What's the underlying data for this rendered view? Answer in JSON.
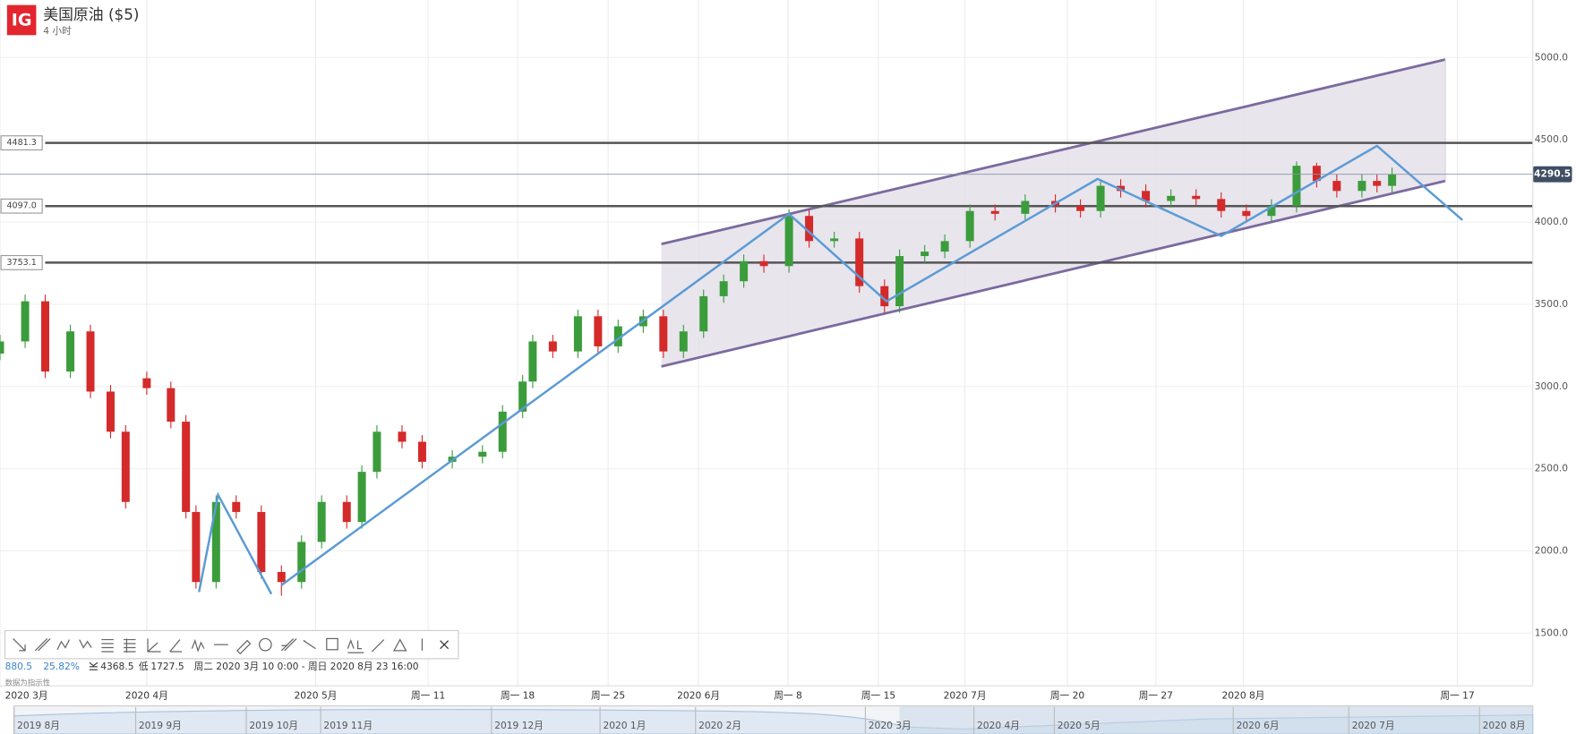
{
  "chart_data": {
    "type": "candlestick",
    "title": "美国原油 ($5)",
    "subtitle": "4 小时",
    "logo": "IG",
    "x": [
      0,
      25,
      45,
      70,
      90,
      110,
      125,
      146,
      170,
      185,
      195,
      215,
      235,
      260,
      280,
      300,
      320,
      345,
      360,
      375,
      400,
      420,
      450,
      480,
      500,
      520,
      530,
      550,
      575,
      595,
      615,
      640,
      660,
      680,
      700,
      720,
      740,
      760,
      785,
      805,
      830,
      855,
      880,
      895,
      920,
      940,
      965,
      990,
      1020,
      1050,
      1075,
      1095,
      1115,
      1140,
      1165,
      1190,
      1215,
      1240,
      1265,
      1290,
      1310,
      1330,
      1355,
      1370,
      1385
    ],
    "open": [
      3200,
      3274,
      3518,
      3091,
      3335,
      2969,
      2725,
      3050,
      2990,
      2786,
      2237,
      1811,
      2298,
      2237,
      1872,
      1811,
      2055,
      2298,
      2176,
      2481,
      2725,
      2664,
      2542,
      2573,
      2603,
      2847,
      3030,
      3274,
      3213,
      3427,
      3244,
      3366,
      3427,
      3213,
      3335,
      3549,
      3640,
      3762,
      3732,
      4037,
      3884,
      3900,
      3610,
      3488,
      3793,
      3820,
      3884,
      4067,
      4050,
      4128,
      4098,
      4067,
      4220,
      4189,
      4128,
      4159,
      4140,
      4067,
      4037,
      4098,
      4342,
      4250,
      4189,
      4250,
      4220
    ],
    "high": [
      3314,
      3558,
      3558,
      3375,
      3375,
      3009,
      2765,
      3090,
      3030,
      2826,
      2277,
      2338,
      2338,
      2277,
      1912,
      2095,
      2338,
      2338,
      2521,
      2765,
      2765,
      2704,
      2613,
      2643,
      2887,
      3070,
      3314,
      3314,
      3467,
      3467,
      3406,
      3467,
      3467,
      3375,
      3589,
      3680,
      3802,
      3802,
      4077,
      4077,
      3940,
      3940,
      3650,
      3833,
      3860,
      3924,
      4107,
      4107,
      4168,
      4168,
      4138,
      4260,
      4260,
      4229,
      4199,
      4199,
      4180,
      4107,
      4138,
      4368.5,
      4360,
      4290,
      4290,
      4290,
      4330.5
    ],
    "low": [
      3160,
      3234,
      3051,
      3051,
      2929,
      2685,
      2258,
      2950,
      2746,
      2197,
      1771,
      1771,
      2197,
      1832,
      1727.5,
      1771,
      2015,
      2136,
      2136,
      2441,
      2624,
      2502,
      2502,
      2533,
      2563,
      2807,
      2990,
      3173,
      3173,
      3204,
      3204,
      3326,
      3173,
      3173,
      3295,
      3509,
      3600,
      3692,
      3692,
      3844,
      3844,
      3570,
      3448,
      3448,
      3753,
      3780,
      3844,
      4010,
      4010,
      4058,
      4027,
      4027,
      4149,
      4088,
      4088,
      4100,
      4027,
      3997,
      3997,
      4058,
      4210,
      4149,
      4149,
      4180,
      4180
    ],
    "close": [
      3274,
      3518,
      3091,
      3335,
      2969,
      2725,
      2298,
      2990,
      2786,
      2237,
      1811,
      2298,
      2237,
      1872,
      1811,
      2055,
      2298,
      2176,
      2481,
      2725,
      2664,
      2542,
      2573,
      2603,
      2847,
      3030,
      3274,
      3213,
      3427,
      3244,
      3366,
      3427,
      3213,
      3335,
      3549,
      3640,
      3762,
      3732,
      4037,
      3884,
      3900,
      3610,
      3488,
      3793,
      3820,
      3884,
      4067,
      4050,
      4128,
      4098,
      4067,
      4220,
      4189,
      4128,
      4159,
      4140,
      4067,
      4037,
      4098,
      4342,
      4250,
      4189,
      4250,
      4220,
      4290.5
    ],
    "up_color": "#3b9c3b",
    "down_color": "#d42a2a",
    "xlim": [
      0,
      1525
    ],
    "xticks": [
      {
        "value": 0,
        "label": "2020 3月"
      },
      {
        "value": 146,
        "label": "2020 4月"
      },
      {
        "value": 314,
        "label": "2020 5月"
      },
      {
        "value": 426,
        "label": "周一 11"
      },
      {
        "value": 515,
        "label": "周一 18"
      },
      {
        "value": 605,
        "label": "周一 25"
      },
      {
        "value": 695,
        "label": "2020 6月"
      },
      {
        "value": 784,
        "label": "周一 8"
      },
      {
        "value": 874,
        "label": "周一 15"
      },
      {
        "value": 960,
        "label": "2020 7月"
      },
      {
        "value": 1062,
        "label": "周一 20"
      },
      {
        "value": 1150,
        "label": "周一 27"
      },
      {
        "value": 1237,
        "label": "2020 8月"
      },
      {
        "value": 1450,
        "label": "周一 17"
      }
    ],
    "ylim": [
      1180,
      5350
    ],
    "yticks": [
      {
        "value": 1500,
        "label": "1500.0"
      },
      {
        "value": 2000,
        "label": "2000.0"
      },
      {
        "value": 2500,
        "label": "2500.0"
      },
      {
        "value": 3000,
        "label": "3000.0"
      },
      {
        "value": 3500,
        "label": "3500.0"
      },
      {
        "value": 4000,
        "label": "4000.0"
      },
      {
        "value": 4500,
        "label": "4500.0"
      },
      {
        "value": 5000,
        "label": "5000.0"
      }
    ],
    "grid": true,
    "levels": [
      4481.3,
      {
        "value": 4097.0,
        "label": "4097.0"
      },
      3753.1
    ],
    "level_color": "#555555",
    "current_price": 4290.5,
    "channel": {
      "color": "#7b6a9e",
      "fill": "#e4e0ea",
      "upper": {
        "x": [
          658,
          1438
        ],
        "y": [
          3866,
          4988
        ]
      },
      "lower": {
        "x": [
          658,
          1438
        ],
        "y": [
          3122,
          4250
        ]
      }
    },
    "trendlines": {
      "color": "#5b9bd5",
      "lines": [
        {
          "x": [
            198,
            217,
            270
          ],
          "y": [
            1750,
            2341,
            1738
          ]
        },
        {
          "x": [
            280,
            785,
            882,
            1092,
            1215,
            1370,
            1455
          ],
          "y": [
            1792,
            4049,
            3518,
            4262,
            3915,
            4463,
            4012
          ]
        }
      ]
    },
    "stats": {
      "change": "880.5",
      "change_pct": "25.82%",
      "high": "4368.5",
      "low_label": "低",
      "low": "1727.5",
      "range": "周二 2020 3月 10 0:00 - 周日 2020 8月 23 16:00",
      "note": "数据为指示性"
    },
    "navigator": {
      "labels": [
        "2019 8月",
        "2019 9月",
        "2019 10月",
        "2019 11月",
        "2019 12月",
        "2020 1月",
        "2020 2月",
        "2020 3月",
        "2020 4月",
        "2020 5月",
        "2020 6月",
        "2020 7月",
        "2020 8月"
      ]
    }
  }
}
